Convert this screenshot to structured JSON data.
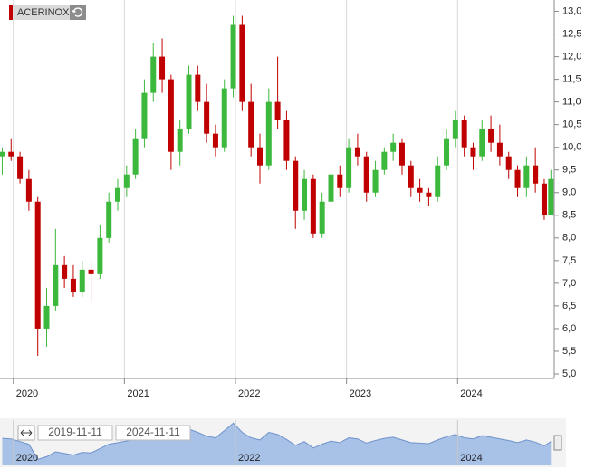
{
  "chart_data": {
    "type": "candlestick",
    "name": "ACERINOX",
    "up_color": "#3cb83c",
    "down_color": "#c00000",
    "x": [
      2019.9,
      2019.98,
      2020.06,
      2020.14,
      2020.22,
      2020.3,
      2020.38,
      2020.46,
      2020.54,
      2020.62,
      2020.7,
      2020.78,
      2020.86,
      2020.94,
      2021.02,
      2021.1,
      2021.18,
      2021.26,
      2021.34,
      2021.42,
      2021.5,
      2021.58,
      2021.66,
      2021.74,
      2021.82,
      2021.9,
      2021.98,
      2022.06,
      2022.14,
      2022.22,
      2022.3,
      2022.38,
      2022.46,
      2022.54,
      2022.62,
      2022.7,
      2022.78,
      2022.86,
      2022.94,
      2023.02,
      2023.1,
      2023.18,
      2023.26,
      2023.34,
      2023.42,
      2023.5,
      2023.58,
      2023.66,
      2023.74,
      2023.82,
      2023.9,
      2023.98,
      2024.06,
      2024.14,
      2024.22,
      2024.3,
      2024.38,
      2024.46,
      2024.54,
      2024.62,
      2024.7,
      2024.78,
      2024.84
    ],
    "open": [
      9.8,
      9.9,
      9.8,
      9.3,
      8.8,
      6.0,
      6.5,
      7.4,
      7.1,
      6.8,
      7.3,
      7.2,
      8.0,
      8.8,
      9.1,
      9.4,
      10.2,
      11.2,
      12.0,
      11.5,
      9.9,
      10.4,
      11.6,
      11.0,
      10.3,
      10.0,
      11.3,
      12.7,
      11.0,
      10.0,
      9.6,
      11.0,
      10.6,
      9.7,
      8.6,
      9.3,
      8.1,
      8.8,
      9.4,
      9.1,
      10.0,
      9.8,
      9.0,
      9.5,
      9.9,
      10.1,
      9.6,
      9.1,
      9.0,
      8.9,
      9.6,
      10.2,
      10.6,
      10.0,
      9.8,
      10.4,
      10.1,
      9.8,
      9.5,
      9.1,
      9.6,
      9.2,
      8.5
    ],
    "high": [
      10.0,
      10.2,
      9.9,
      9.5,
      8.9,
      6.9,
      8.2,
      7.6,
      7.4,
      7.5,
      7.5,
      8.3,
      9.0,
      9.3,
      9.6,
      10.4,
      11.5,
      12.3,
      12.4,
      11.6,
      10.6,
      11.8,
      11.8,
      11.4,
      10.5,
      11.5,
      12.9,
      12.9,
      11.4,
      10.3,
      11.3,
      12.0,
      10.8,
      9.8,
      9.5,
      9.4,
      9.0,
      9.6,
      9.6,
      10.2,
      10.3,
      9.9,
      9.7,
      10.0,
      10.3,
      10.2,
      9.7,
      9.3,
      9.1,
      9.8,
      10.4,
      10.8,
      10.7,
      10.1,
      10.6,
      10.7,
      10.5,
      9.9,
      9.6,
      9.8,
      10.0,
      9.3,
      9.5
    ],
    "low": [
      9.4,
      9.7,
      9.2,
      8.6,
      5.4,
      5.6,
      6.4,
      6.9,
      6.7,
      6.7,
      6.6,
      7.1,
      7.9,
      8.6,
      8.9,
      9.3,
      10.0,
      11.0,
      11.2,
      9.5,
      9.6,
      10.3,
      10.8,
      10.1,
      9.8,
      9.9,
      11.1,
      10.8,
      9.8,
      9.2,
      9.5,
      10.4,
      9.5,
      8.2,
      8.4,
      8.0,
      8.0,
      8.7,
      8.9,
      9.0,
      9.6,
      8.8,
      8.9,
      9.4,
      9.7,
      9.4,
      8.9,
      8.8,
      8.7,
      8.8,
      9.5,
      10.0,
      9.8,
      9.5,
      9.7,
      9.9,
      9.6,
      9.3,
      8.9,
      8.9,
      9.0,
      8.4,
      8.5
    ],
    "close": [
      9.9,
      9.8,
      9.3,
      8.8,
      6.0,
      6.5,
      7.4,
      7.1,
      6.8,
      7.3,
      7.2,
      8.0,
      8.8,
      9.1,
      9.4,
      10.2,
      11.2,
      12.0,
      11.5,
      9.9,
      10.4,
      11.6,
      11.0,
      10.3,
      10.0,
      11.3,
      12.7,
      11.0,
      10.0,
      9.6,
      11.0,
      10.6,
      9.7,
      8.6,
      9.3,
      8.1,
      8.8,
      9.4,
      9.1,
      10.0,
      9.8,
      9.0,
      9.5,
      9.9,
      10.1,
      9.6,
      9.1,
      9.0,
      8.9,
      9.6,
      10.2,
      10.6,
      10.0,
      9.8,
      10.4,
      10.1,
      9.8,
      9.5,
      9.1,
      9.6,
      9.2,
      8.5,
      9.3
    ],
    "xlim": [
      2019.88,
      2024.87
    ],
    "xticks": [
      2020,
      2021,
      2022,
      2023,
      2024
    ],
    "ylim": [
      4.9,
      13.25
    ],
    "yticks": [
      {
        "value": 5,
        "label": "5,0"
      },
      {
        "value": 5.5,
        "label": "5,5"
      },
      {
        "value": 6,
        "label": "6,0"
      },
      {
        "value": 6.5,
        "label": "6,5"
      },
      {
        "value": 7,
        "label": "7,0"
      },
      {
        "value": 7.5,
        "label": "7,5"
      },
      {
        "value": 8,
        "label": "8,0"
      },
      {
        "value": 8.5,
        "label": "8,5"
      },
      {
        "value": 9,
        "label": "9,0"
      },
      {
        "value": 9.5,
        "label": "9,5"
      },
      {
        "value": 10,
        "label": "10,0"
      },
      {
        "value": 10.5,
        "label": "10,5"
      },
      {
        "value": 11,
        "label": "11,0"
      },
      {
        "value": 11.5,
        "label": "11,5"
      },
      {
        "value": 12,
        "label": "12,0"
      },
      {
        "value": 12.5,
        "label": "12,5"
      },
      {
        "value": 13,
        "label": "13,0"
      }
    ],
    "navigator": {
      "range_labels": [
        "2019-11-11",
        "2024-11-11"
      ],
      "xticks": [
        2020,
        2022,
        2024
      ],
      "color": "#a8c1e6",
      "line_color": "#6f93cc"
    }
  }
}
